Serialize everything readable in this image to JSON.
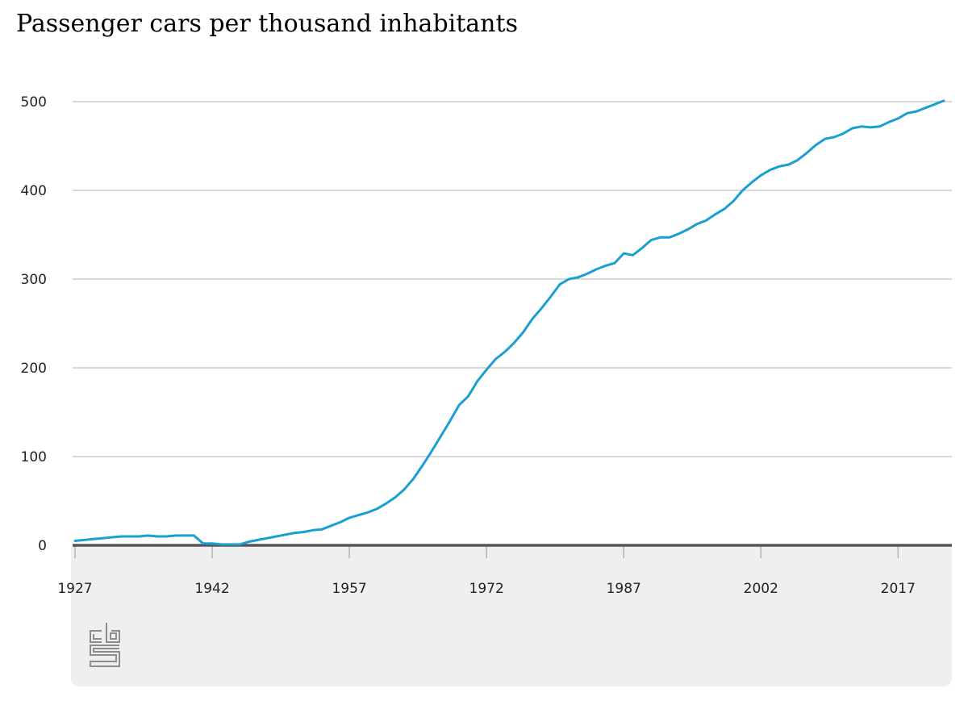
{
  "chart_data": {
    "type": "line",
    "title": "Passenger cars per thousand inhabitants",
    "xlabel": "",
    "ylabel": "",
    "xlim": [
      1927,
      2022
    ],
    "ylim": [
      0,
      500
    ],
    "grid": true,
    "legend": "none",
    "x_ticks": [
      "1927",
      "1942",
      "1957",
      "1972",
      "1987",
      "2002",
      "2017"
    ],
    "y_ticks": [
      "0",
      "100",
      "200",
      "300",
      "400",
      "500"
    ],
    "series": [
      {
        "color": "#1a9fd0",
        "x": [
          1927,
          1928,
          1929,
          1930,
          1931,
          1932,
          1933,
          1934,
          1935,
          1936,
          1937,
          1938,
          1939,
          1940,
          1941,
          1942,
          1943,
          1944,
          1945,
          1946,
          1947,
          1948,
          1949,
          1950,
          1951,
          1952,
          1953,
          1954,
          1955,
          1956,
          1957,
          1958,
          1959,
          1960,
          1961,
          1962,
          1963,
          1964,
          1965,
          1966,
          1967,
          1968,
          1969,
          1970,
          1971,
          1972,
          1973,
          1974,
          1975,
          1976,
          1977,
          1978,
          1979,
          1980,
          1981,
          1982,
          1983,
          1984,
          1985,
          1986,
          1987,
          1988,
          1989,
          1990,
          1991,
          1992,
          1993,
          1994,
          1995,
          1996,
          1997,
          1998,
          1999,
          2000,
          2001,
          2002,
          2003,
          2004,
          2005,
          2006,
          2007,
          2008,
          2009,
          2010,
          2011,
          2012,
          2013,
          2014,
          2015,
          2016,
          2017,
          2018,
          2019,
          2020,
          2021,
          2022
        ],
        "y": [
          5,
          6,
          7,
          8,
          9,
          10,
          10,
          10,
          11,
          10,
          10,
          11,
          11,
          11,
          2,
          2,
          1,
          1,
          1,
          4,
          6,
          8,
          10,
          12,
          14,
          15,
          17,
          18,
          22,
          26,
          31,
          34,
          37,
          41,
          47,
          54,
          63,
          75,
          90,
          106,
          123,
          140,
          158,
          168,
          185,
          198,
          210,
          218,
          228,
          240,
          255,
          267,
          280,
          294,
          300,
          302,
          306,
          311,
          315,
          318,
          329,
          327,
          335,
          344,
          347,
          347,
          351,
          356,
          362,
          366,
          373,
          379,
          388,
          400,
          409,
          417,
          423,
          427,
          429,
          434,
          442,
          451,
          458,
          460,
          464,
          470,
          472,
          471,
          472,
          477,
          481,
          487,
          489,
          493,
          497,
          501
        ]
      }
    ]
  },
  "source_logo": "cbs"
}
